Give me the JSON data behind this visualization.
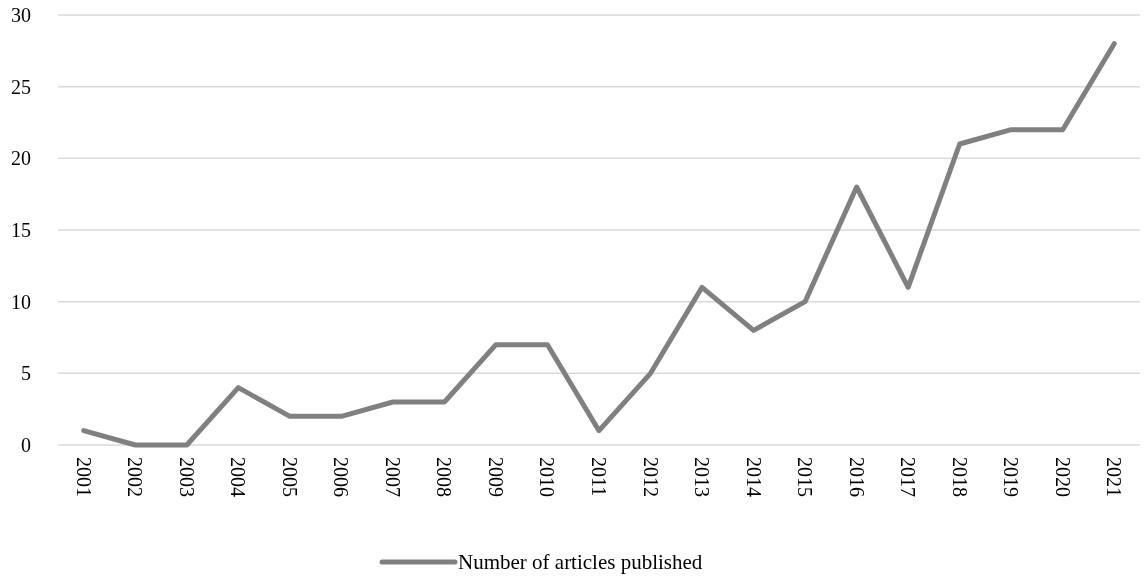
{
  "chart_data": {
    "type": "line",
    "categories": [
      "2001",
      "2002",
      "2003",
      "2004",
      "2005",
      "2006",
      "2007",
      "2008",
      "2009",
      "2010",
      "2011",
      "2012",
      "2013",
      "2014",
      "2015",
      "2016",
      "2017",
      "2018",
      "2019",
      "2020",
      "2021"
    ],
    "series": [
      {
        "name": "Number of articles published",
        "color": "#808080",
        "values": [
          1,
          0,
          0,
          4,
          2,
          2,
          3,
          3,
          7,
          7,
          1,
          5,
          11,
          8,
          10,
          18,
          11,
          21,
          22,
          22,
          28
        ]
      }
    ],
    "ylim": [
      0,
      30
    ],
    "yticks": [
      0,
      5,
      10,
      15,
      20,
      25,
      30
    ],
    "grid": "y",
    "legend": "bottom",
    "marker": "none",
    "line_style": "solid"
  }
}
